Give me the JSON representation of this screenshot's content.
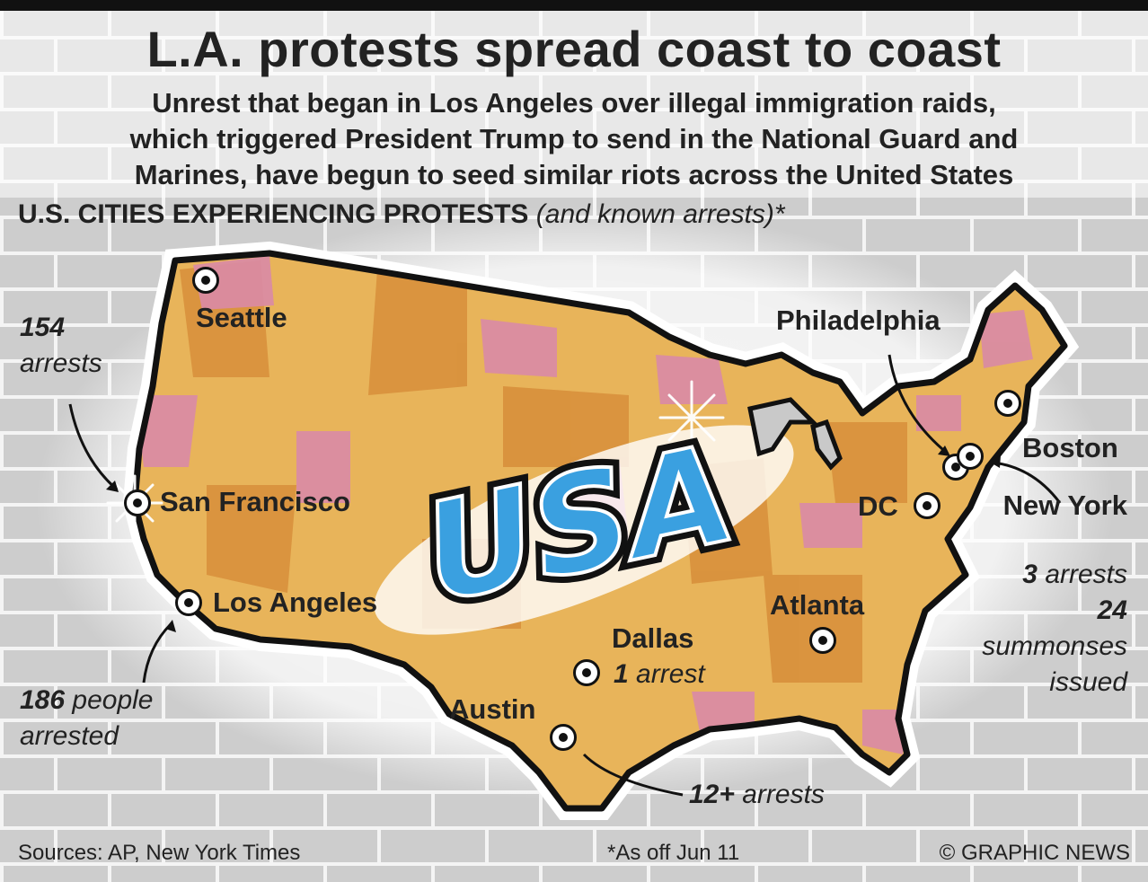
{
  "header": {
    "title": "L.A. protests spread coast to coast",
    "subtitle_lines": [
      "Unrest that began in Los Angeles over illegal immigration raids,",
      "which triggered President Trump to send in the National Guard and",
      "Marines, have begun to seed similar riots across the United States"
    ]
  },
  "section": {
    "heading": "U.S. CITIES EXPERIENCING PROTESTS",
    "heading_note": "(and known arrests)*"
  },
  "map": {
    "graffiti_text": "USA",
    "colors": {
      "land": "#e8b45a",
      "land_dark": "#d8903c",
      "pink": "#d98aa6",
      "outline": "#111111",
      "wall": "#cfcfcf",
      "brick_line": "#f2f2f2",
      "usa_blue": "#3aa0e0",
      "usa_light": "#bfe6fb"
    },
    "cities": {
      "seattle": "Seattle",
      "san_francisco": "San Francisco",
      "los_angeles": "Los Angeles",
      "philadelphia": "Philadelphia",
      "boston": "Boston",
      "new_york": "New York",
      "dc": "DC",
      "atlanta": "Atlanta",
      "dallas": "Dallas",
      "austin": "Austin"
    },
    "arrests": {
      "sf_count": "154",
      "sf_unit": "arrests",
      "la_count": "186",
      "la_unit_1": "people",
      "la_unit_2": "arrested",
      "ny_count": "3",
      "ny_unit": "arrests",
      "ny_summons_count": "24",
      "ny_summons_1": "summonses",
      "ny_summons_2": "issued",
      "dallas_count": "1",
      "dallas_unit": "arrest",
      "austin_count": "12+",
      "austin_unit": "arrests"
    }
  },
  "footer": {
    "sources": "Sources: AP, New York Times",
    "date_note": "*As off Jun 11",
    "credit": "© GRAPHIC NEWS"
  }
}
